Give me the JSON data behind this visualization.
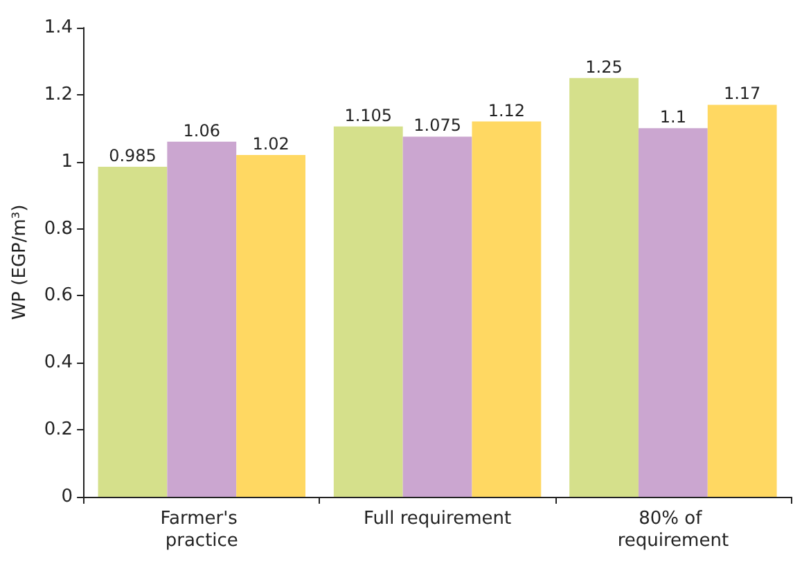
{
  "chart_data": {
    "type": "bar",
    "ylabel": "WP (EGP/m³)",
    "categories": [
      "Farmer's practice",
      "Full requirement",
      "80% of requirement"
    ],
    "series": [
      {
        "color": "#d5e08b",
        "values": [
          0.985,
          1.105,
          1.25
        ]
      },
      {
        "color": "#cba6d0",
        "values": [
          1.06,
          1.075,
          1.1
        ]
      },
      {
        "color": "#ffd862",
        "values": [
          1.02,
          1.12,
          1.17
        ]
      }
    ],
    "ylim": [
      0,
      1.4
    ],
    "yticks": [
      0,
      0.2,
      0.4,
      0.6,
      0.8,
      1,
      1.2,
      1.4
    ],
    "data_labels": true,
    "grid": false
  }
}
